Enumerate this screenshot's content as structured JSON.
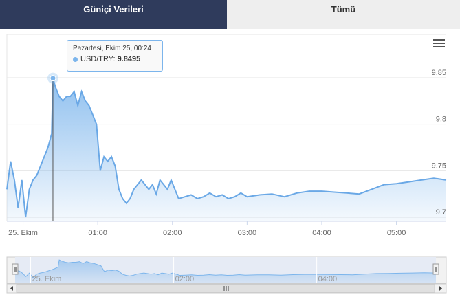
{
  "tabs": [
    {
      "label": "Güniçi Verileri",
      "active": true
    },
    {
      "label": "Tümü",
      "active": false
    }
  ],
  "colors": {
    "tab_active_bg": "#2f3b5c",
    "series": "#7cb5ec",
    "series_line": "#6aa8e6"
  },
  "icons": {
    "menu": "hamburger-menu-icon"
  },
  "tooltip": {
    "date": "Pazartesi, Ekim 25, 00:24",
    "series": "USD/TRY",
    "value": "9.8495"
  },
  "chart_data": {
    "type": "area",
    "series": [
      {
        "name": "USD/TRY"
      }
    ],
    "ylim": [
      9.7,
      9.85
    ],
    "yticks": [
      "9.7",
      "9.75",
      "9.8",
      "9.85"
    ],
    "xticks": [
      "25. Ekim",
      "01:00",
      "02:00",
      "03:00",
      "04:00",
      "05:00"
    ],
    "navigator_ticks": [
      "25. Ekim",
      "02:00",
      "04:00"
    ],
    "x": [
      "23:47",
      "23:50",
      "23:53",
      "23:56",
      "23:59",
      "00:02",
      "00:05",
      "00:08",
      "00:11",
      "00:14",
      "00:17",
      "00:20",
      "00:23",
      "00:24",
      "00:26",
      "00:29",
      "00:32",
      "00:35",
      "00:38",
      "00:41",
      "00:44",
      "00:47",
      "00:50",
      "00:53",
      "00:56",
      "00:59",
      "01:02",
      "01:05",
      "01:08",
      "01:11",
      "01:14",
      "01:17",
      "01:20",
      "01:23",
      "01:26",
      "01:29",
      "01:32",
      "01:35",
      "01:38",
      "01:41",
      "01:44",
      "01:47",
      "01:50",
      "01:53",
      "01:56",
      "01:59",
      "02:05",
      "02:10",
      "02:15",
      "02:20",
      "02:25",
      "02:30",
      "02:35",
      "02:40",
      "02:45",
      "02:50",
      "02:55",
      "03:00",
      "03:10",
      "03:20",
      "03:30",
      "03:40",
      "03:50",
      "04:00",
      "04:10",
      "04:20",
      "04:30",
      "04:40",
      "04:50",
      "05:00",
      "05:10",
      "05:20",
      "05:30",
      "05:40"
    ],
    "values": [
      9.73,
      9.76,
      9.74,
      9.71,
      9.74,
      9.7,
      9.73,
      9.74,
      9.745,
      9.755,
      9.765,
      9.775,
      9.79,
      9.8495,
      9.84,
      9.83,
      9.825,
      9.83,
      9.83,
      9.835,
      9.82,
      9.835,
      9.825,
      9.82,
      9.81,
      9.8,
      9.75,
      9.765,
      9.76,
      9.765,
      9.755,
      9.73,
      9.72,
      9.715,
      9.72,
      9.73,
      9.735,
      9.74,
      9.735,
      9.73,
      9.735,
      9.725,
      9.74,
      9.735,
      9.73,
      9.74,
      9.72,
      9.722,
      9.724,
      9.72,
      9.722,
      9.726,
      9.722,
      9.724,
      9.72,
      9.722,
      9.726,
      9.722,
      9.724,
      9.725,
      9.722,
      9.726,
      9.728,
      9.728,
      9.727,
      9.726,
      9.725,
      9.73,
      9.735,
      9.736,
      9.738,
      9.74,
      9.742,
      9.74
    ]
  }
}
